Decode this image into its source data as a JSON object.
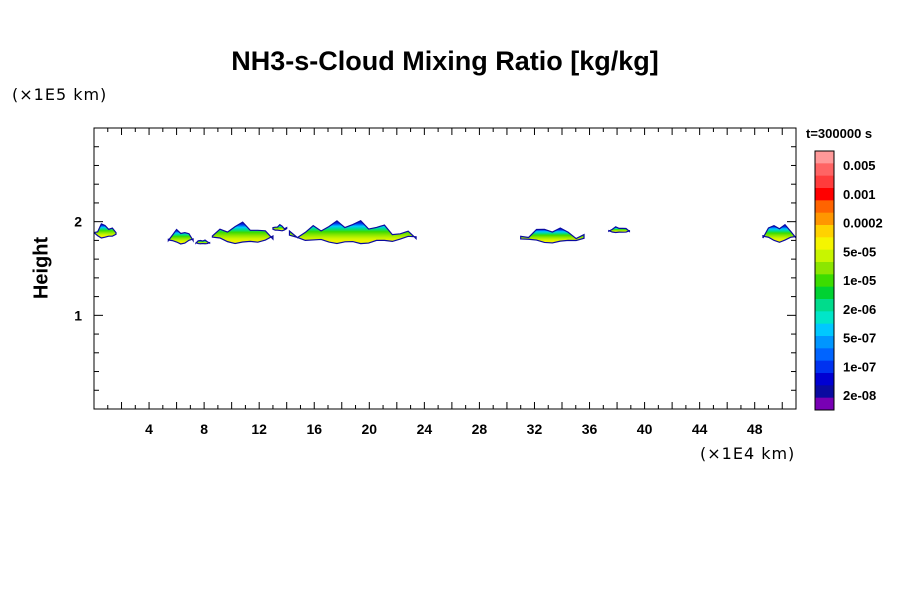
{
  "chart_data": {
    "type": "heatmap",
    "title": "NH3-s-Cloud Mixing Ratio [kg/kg]",
    "xlabel": "",
    "ylabel": "Height",
    "x_unit": "(×1E4 km)",
    "y_unit": "(×1E5 km)",
    "time_label": "t=300000 s",
    "xlim": [
      0,
      51
    ],
    "ylim": [
      0,
      3
    ],
    "x_ticks": [
      4,
      8,
      12,
      16,
      20,
      24,
      28,
      32,
      36,
      40,
      44,
      48
    ],
    "y_ticks": [
      1,
      2
    ],
    "grid": false,
    "colorbar": {
      "placement": "right",
      "labels": [
        "0.005",
        "0.001",
        "0.0002",
        "5e-05",
        "1e-05",
        "2e-06",
        "5e-07",
        "1e-07",
        "2e-08"
      ],
      "colors": [
        "#ff9999",
        "#ff6464",
        "#ff3c3c",
        "#ff0000",
        "#ff6400",
        "#ff9600",
        "#ffd200",
        "#f5f500",
        "#c8f500",
        "#8ce600",
        "#3cdc00",
        "#00d232",
        "#00dc8c",
        "#00e6c8",
        "#00c8ff",
        "#0096ff",
        "#0064ff",
        "#0032f0",
        "#0000d2",
        "#0a0aa0",
        "#7800b4"
      ]
    },
    "cloud_patches": [
      {
        "x0": 0.0,
        "x1": 1.6,
        "bottom": 1.82,
        "top": 1.99,
        "peak": "5e-05"
      },
      {
        "x0": 5.4,
        "x1": 7.2,
        "bottom": 1.76,
        "top": 1.93,
        "peak": "5e-05"
      },
      {
        "x0": 7.4,
        "x1": 8.4,
        "bottom": 1.76,
        "top": 1.81,
        "peak": "5e-05"
      },
      {
        "x0": 8.6,
        "x1": 13.0,
        "bottom": 1.76,
        "top": 2.0,
        "peak": "5e-05"
      },
      {
        "x0": 13.0,
        "x1": 14.0,
        "bottom": 1.9,
        "top": 1.97,
        "peak": "1e-05"
      },
      {
        "x0": 14.2,
        "x1": 23.4,
        "bottom": 1.76,
        "top": 2.02,
        "peak": "5e-05"
      },
      {
        "x0": 31.0,
        "x1": 35.6,
        "bottom": 1.77,
        "top": 1.95,
        "peak": "5e-05"
      },
      {
        "x0": 37.4,
        "x1": 38.9,
        "bottom": 1.88,
        "top": 1.95,
        "peak": "1e-05"
      },
      {
        "x0": 48.6,
        "x1": 51.0,
        "bottom": 1.78,
        "top": 2.0,
        "peak": "5e-05"
      }
    ]
  }
}
